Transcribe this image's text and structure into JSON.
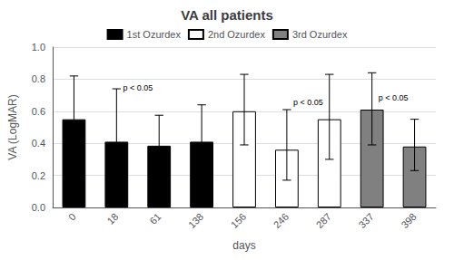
{
  "chart_data": {
    "type": "bar",
    "title": "VA all patients",
    "xlabel": "days",
    "ylabel": "VA (LogMAR)",
    "categories": [
      "0",
      "18",
      "61",
      "138",
      "156",
      "246",
      "287",
      "337",
      "398"
    ],
    "series": [
      {
        "name": "1st Ozurdex",
        "color": "#000000",
        "values": [
          0.55,
          0.41,
          0.385,
          0.41,
          null,
          null,
          null,
          null,
          null
        ],
        "error_low": [
          0.27,
          0.3,
          0.19,
          0.23,
          null,
          null,
          null,
          null,
          null
        ],
        "error_high": [
          0.27,
          0.33,
          0.19,
          0.23,
          null,
          null,
          null,
          null,
          null
        ]
      },
      {
        "name": "2nd Ozurdex",
        "color": "#ffffff",
        "values": [
          null,
          null,
          null,
          null,
          0.6,
          0.36,
          0.55,
          null,
          null
        ],
        "error_low": [
          null,
          null,
          null,
          null,
          0.21,
          0.19,
          0.25,
          null,
          null
        ],
        "error_high": [
          null,
          null,
          null,
          null,
          0.23,
          0.25,
          0.28,
          null,
          null
        ]
      },
      {
        "name": "3rd Ozurdex",
        "color": "#808080",
        "values": [
          null,
          null,
          null,
          null,
          null,
          null,
          null,
          0.61,
          0.38
        ],
        "error_low": [
          null,
          null,
          null,
          null,
          null,
          null,
          null,
          0.22,
          0.15
        ],
        "error_high": [
          null,
          null,
          null,
          null,
          null,
          null,
          null,
          0.23,
          0.17
        ]
      }
    ],
    "annotations": [
      {
        "text": "p < 0.05",
        "between": [
          "18",
          "61"
        ],
        "y": 0.72
      },
      {
        "text": "p < 0.05",
        "between": [
          "246",
          "287"
        ],
        "y": 0.63
      },
      {
        "text": "p < 0.05",
        "between": [
          "337",
          "398"
        ],
        "y": 0.66
      }
    ],
    "ylim": [
      0.0,
      1.0
    ],
    "yticks": [
      {
        "value": 0.0,
        "label": "0.0"
      },
      0.2,
      0.4,
      0.6,
      0.8,
      {
        "value": 1.0,
        "label": "1.0"
      }
    ],
    "grid": true
  }
}
